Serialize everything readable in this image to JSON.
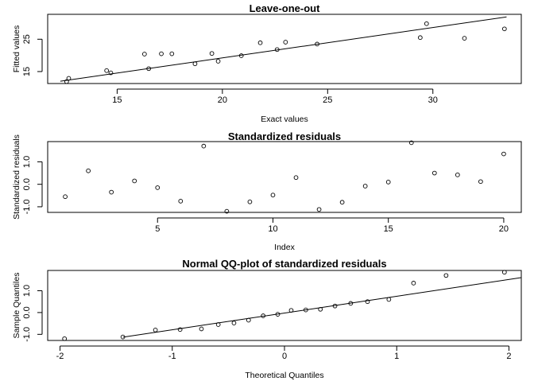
{
  "chart_data": [
    {
      "type": "scatter",
      "title": "Leave-one-out",
      "xlabel": "Exact values",
      "ylabel": "Fitted values",
      "xlim": [
        11.7,
        34.2
      ],
      "ylim": [
        11.3,
        32.7
      ],
      "xticks": [
        15,
        20,
        25,
        30
      ],
      "yticks": [
        15,
        25
      ],
      "points": [
        {
          "x": 12.6,
          "y": 11.9
        },
        {
          "x": 12.7,
          "y": 12.9
        },
        {
          "x": 14.5,
          "y": 15.3
        },
        {
          "x": 14.7,
          "y": 14.6
        },
        {
          "x": 16.3,
          "y": 20.4
        },
        {
          "x": 16.5,
          "y": 15.9
        },
        {
          "x": 17.1,
          "y": 20.5
        },
        {
          "x": 17.6,
          "y": 20.5
        },
        {
          "x": 18.7,
          "y": 17.4
        },
        {
          "x": 19.5,
          "y": 20.6
        },
        {
          "x": 19.8,
          "y": 18.2
        },
        {
          "x": 20.9,
          "y": 19.9
        },
        {
          "x": 21.8,
          "y": 23.9
        },
        {
          "x": 22.6,
          "y": 21.8
        },
        {
          "x": 23.0,
          "y": 24.1
        },
        {
          "x": 24.5,
          "y": 23.5
        },
        {
          "x": 29.4,
          "y": 25.5
        },
        {
          "x": 29.7,
          "y": 29.8
        },
        {
          "x": 31.5,
          "y": 25.3
        },
        {
          "x": 33.4,
          "y": 28.2
        }
      ],
      "line": [
        [
          12.3,
          12.0
        ],
        [
          33.5,
          31.9
        ]
      ]
    },
    {
      "type": "scatter",
      "title": "Standardized residuals",
      "xlabel": "Index",
      "ylabel": "Standardized residuals",
      "xlim": [
        0.24,
        20.76
      ],
      "ylim": [
        -1.25,
        1.9
      ],
      "xticks": [
        5,
        10,
        15,
        20
      ],
      "yticks": [
        -1.0,
        0.0,
        1.0
      ],
      "tick_labels_y": [
        "-1.0",
        "0.0",
        "1.0"
      ],
      "points": [
        {
          "x": 1,
          "y": -0.55
        },
        {
          "x": 2,
          "y": 0.6
        },
        {
          "x": 3,
          "y": -0.35
        },
        {
          "x": 4,
          "y": 0.15
        },
        {
          "x": 5,
          "y": -0.15
        },
        {
          "x": 6,
          "y": -0.75
        },
        {
          "x": 7,
          "y": 1.7
        },
        {
          "x": 8,
          "y": -1.2
        },
        {
          "x": 9,
          "y": -0.78
        },
        {
          "x": 10,
          "y": -0.48
        },
        {
          "x": 11,
          "y": 0.3
        },
        {
          "x": 12,
          "y": -1.12
        },
        {
          "x": 13,
          "y": -0.8
        },
        {
          "x": 14,
          "y": -0.08
        },
        {
          "x": 15,
          "y": 0.1
        },
        {
          "x": 16,
          "y": 1.85
        },
        {
          "x": 17,
          "y": 0.5
        },
        {
          "x": 18,
          "y": 0.42
        },
        {
          "x": 19,
          "y": 0.12
        },
        {
          "x": 20,
          "y": 1.35
        }
      ]
    },
    {
      "type": "scatter",
      "title": "Normal QQ-plot of standardized residuals",
      "xlabel": "Theoretical Quantiles",
      "ylabel": "Sample Quantiles",
      "xlim": [
        -2.11,
        2.11
      ],
      "ylim": [
        -1.28,
        1.93
      ],
      "xticks": [
        -2,
        -1,
        0,
        1,
        2
      ],
      "yticks": [
        -1.0,
        0.0,
        1.0
      ],
      "tick_labels_y": [
        "-1.0",
        "0.0",
        "1.0"
      ],
      "points": [
        {
          "x": -1.96,
          "y": -1.2
        },
        {
          "x": -1.44,
          "y": -1.12
        },
        {
          "x": -1.15,
          "y": -0.8
        },
        {
          "x": -0.93,
          "y": -0.78
        },
        {
          "x": -0.74,
          "y": -0.75
        },
        {
          "x": -0.59,
          "y": -0.55
        },
        {
          "x": -0.45,
          "y": -0.48
        },
        {
          "x": -0.32,
          "y": -0.35
        },
        {
          "x": -0.19,
          "y": -0.15
        },
        {
          "x": -0.06,
          "y": -0.08
        },
        {
          "x": 0.06,
          "y": 0.1
        },
        {
          "x": 0.19,
          "y": 0.12
        },
        {
          "x": 0.32,
          "y": 0.15
        },
        {
          "x": 0.45,
          "y": 0.3
        },
        {
          "x": 0.59,
          "y": 0.42
        },
        {
          "x": 0.74,
          "y": 0.5
        },
        {
          "x": 0.93,
          "y": 0.6
        },
        {
          "x": 1.15,
          "y": 1.35
        },
        {
          "x": 1.44,
          "y": 1.7
        },
        {
          "x": 1.96,
          "y": 1.85
        }
      ],
      "line": [
        [
          -1.44,
          -1.13
        ],
        [
          2.11,
          1.6
        ]
      ]
    }
  ]
}
